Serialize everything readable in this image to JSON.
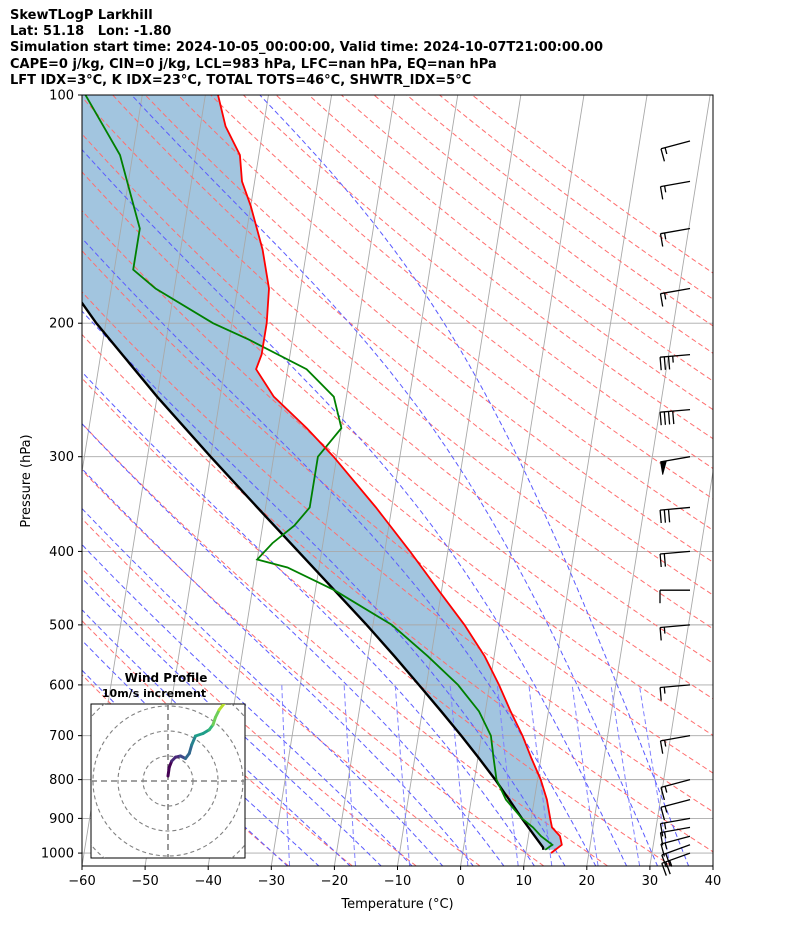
{
  "header": {
    "lines": [
      "SkewTLogP Larkhill",
      "Lat: 51.18   Lon: -1.80",
      "Simulation start time: 2024-10-05_00:00:00, Valid time: 2024-10-07T21:00:00.00",
      "CAPE=0 j/kg, CIN=0 j/kg, LCL=983 hPa, LFC=nan hPa, EQ=nan hPa",
      "LFT IDX=3°C, K IDX=23°C, TOTAL TOTS=46°C, SHWTR_IDX=5°C"
    ]
  },
  "colors": {
    "temperature": "#ff0000",
    "dewpoint": "#008000",
    "parcel": "#000000",
    "shade": "#a2c5df",
    "dry_adiabat": "#ff6f6f",
    "moist_adiabat": "#5a5aff",
    "mixing_ratio": "#8080ff",
    "isotherm": "#a9a9a9"
  },
  "chart_data": {
    "type": "skewt",
    "xlabel": "Temperature (°C)",
    "ylabel": "Pressure (hPa)",
    "xlim": [
      -60,
      40
    ],
    "ylim": [
      1040,
      100
    ],
    "y_scale": "log",
    "grid": true,
    "x_ticks": [
      -60,
      -50,
      -40,
      -30,
      -20,
      -10,
      0,
      10,
      20,
      30,
      40
    ],
    "x_tick_labels": [
      "−60",
      "−50",
      "−40",
      "−30",
      "−20",
      "−10",
      "0",
      "10",
      "20",
      "30",
      "40"
    ],
    "y_ticks": [
      1000,
      900,
      800,
      700,
      600,
      500,
      400,
      300,
      200,
      100
    ],
    "y_tick_labels": [
      "1000",
      "900",
      "800",
      "700",
      "600",
      "500",
      "400",
      "300",
      "200",
      "100"
    ],
    "temperature_profile": [
      {
        "p": 1000,
        "t": 14
      },
      {
        "p": 975,
        "t": 15.5
      },
      {
        "p": 950,
        "t": 15
      },
      {
        "p": 925,
        "t": 13.5
      },
      {
        "p": 900,
        "t": 13
      },
      {
        "p": 850,
        "t": 12
      },
      {
        "p": 800,
        "t": 10.5
      },
      {
        "p": 750,
        "t": 8.5
      },
      {
        "p": 700,
        "t": 6.5
      },
      {
        "p": 650,
        "t": 4
      },
      {
        "p": 600,
        "t": 1.5
      },
      {
        "p": 550,
        "t": -1.5
      },
      {
        "p": 500,
        "t": -5.5
      },
      {
        "p": 450,
        "t": -10.5
      },
      {
        "p": 400,
        "t": -16
      },
      {
        "p": 350,
        "t": -22.5
      },
      {
        "p": 300,
        "t": -30.5
      },
      {
        "p": 275,
        "t": -35.5
      },
      {
        "p": 250,
        "t": -41.5
      },
      {
        "p": 230,
        "t": -45
      },
      {
        "p": 220,
        "t": -44.5
      },
      {
        "p": 200,
        "t": -44.5
      },
      {
        "p": 180,
        "t": -45
      },
      {
        "p": 160,
        "t": -47
      },
      {
        "p": 140,
        "t": -50
      },
      {
        "p": 130,
        "t": -52
      },
      {
        "p": 120,
        "t": -53
      },
      {
        "p": 110,
        "t": -56
      },
      {
        "p": 100,
        "t": -58
      }
    ],
    "dewpoint_profile": [
      {
        "p": 990,
        "t": 13
      },
      {
        "p": 975,
        "t": 14
      },
      {
        "p": 950,
        "t": 12
      },
      {
        "p": 925,
        "t": 10.5
      },
      {
        "p": 900,
        "t": 8.5
      },
      {
        "p": 850,
        "t": 5.5
      },
      {
        "p": 800,
        "t": 3.5
      },
      {
        "p": 750,
        "t": 2.5
      },
      {
        "p": 700,
        "t": 1.5
      },
      {
        "p": 650,
        "t": -1
      },
      {
        "p": 600,
        "t": -5
      },
      {
        "p": 550,
        "t": -10.5
      },
      {
        "p": 500,
        "t": -17
      },
      {
        "p": 450,
        "t": -27
      },
      {
        "p": 420,
        "t": -35
      },
      {
        "p": 410,
        "t": -40
      },
      {
        "p": 390,
        "t": -38
      },
      {
        "p": 370,
        "t": -35
      },
      {
        "p": 350,
        "t": -33
      },
      {
        "p": 300,
        "t": -33
      },
      {
        "p": 275,
        "t": -30
      },
      {
        "p": 250,
        "t": -32
      },
      {
        "p": 230,
        "t": -37
      },
      {
        "p": 210,
        "t": -47
      },
      {
        "p": 200,
        "t": -53
      },
      {
        "p": 180,
        "t": -63
      },
      {
        "p": 170,
        "t": -67
      },
      {
        "p": 150,
        "t": -67
      },
      {
        "p": 120,
        "t": -72
      },
      {
        "p": 100,
        "t": -79
      }
    ],
    "parcel_profile": [
      {
        "p": 990,
        "t": 12.7
      },
      {
        "p": 983,
        "t": 12.6
      },
      {
        "p": 950,
        "t": 11
      },
      {
        "p": 900,
        "t": 8.5
      },
      {
        "p": 850,
        "t": 6
      },
      {
        "p": 800,
        "t": 3.3
      },
      {
        "p": 750,
        "t": 0.2
      },
      {
        "p": 700,
        "t": -3.2
      },
      {
        "p": 650,
        "t": -7
      },
      {
        "p": 600,
        "t": -11.2
      },
      {
        "p": 550,
        "t": -15.8
      },
      {
        "p": 500,
        "t": -21
      },
      {
        "p": 450,
        "t": -27
      },
      {
        "p": 400,
        "t": -33.7
      },
      {
        "p": 350,
        "t": -41.3
      },
      {
        "p": 300,
        "t": -50
      },
      {
        "p": 250,
        "t": -60
      },
      {
        "p": 200,
        "t": -71.5
      },
      {
        "p": 150,
        "t": -84.5
      },
      {
        "p": 100,
        "t": -101
      }
    ],
    "wind_barbs": [
      {
        "p": 1000,
        "speed_kt": 25,
        "dir_deg": 250
      },
      {
        "p": 975,
        "speed_kt": 20,
        "dir_deg": 250
      },
      {
        "p": 950,
        "speed_kt": 15,
        "dir_deg": 255
      },
      {
        "p": 925,
        "speed_kt": 15,
        "dir_deg": 260
      },
      {
        "p": 900,
        "speed_kt": 15,
        "dir_deg": 260
      },
      {
        "p": 850,
        "speed_kt": 15,
        "dir_deg": 255
      },
      {
        "p": 800,
        "speed_kt": 15,
        "dir_deg": 255
      },
      {
        "p": 700,
        "speed_kt": 15,
        "dir_deg": 260
      },
      {
        "p": 600,
        "speed_kt": 15,
        "dir_deg": 265
      },
      {
        "p": 500,
        "speed_kt": 15,
        "dir_deg": 265
      },
      {
        "p": 450,
        "speed_kt": 10,
        "dir_deg": 270
      },
      {
        "p": 400,
        "speed_kt": 20,
        "dir_deg": 265
      },
      {
        "p": 350,
        "speed_kt": 30,
        "dir_deg": 265
      },
      {
        "p": 300,
        "speed_kt": 50,
        "dir_deg": 260
      },
      {
        "p": 260,
        "speed_kt": 40,
        "dir_deg": 265
      },
      {
        "p": 220,
        "speed_kt": 35,
        "dir_deg": 265
      },
      {
        "p": 180,
        "speed_kt": 15,
        "dir_deg": 260
      },
      {
        "p": 150,
        "speed_kt": 15,
        "dir_deg": 260
      },
      {
        "p": 130,
        "speed_kt": 15,
        "dir_deg": 260
      },
      {
        "p": 115,
        "speed_kt": 15,
        "dir_deg": 255
      }
    ],
    "hodograph": {
      "title": "Wind Profile",
      "subtitle": "10m/s increment",
      "ring_step_ms": 10,
      "points": [
        {
          "u": 0.0,
          "v": 2.0
        },
        {
          "u": 0.5,
          "v": 5.5
        },
        {
          "u": 1.5,
          "v": 8.0
        },
        {
          "u": 3.0,
          "v": 9.5
        },
        {
          "u": 5.0,
          "v": 10.0
        },
        {
          "u": 7.0,
          "v": 9.0
        },
        {
          "u": 8.5,
          "v": 11.0
        },
        {
          "u": 9.5,
          "v": 14.5
        },
        {
          "u": 11.0,
          "v": 18.0
        },
        {
          "u": 14.0,
          "v": 19.0
        },
        {
          "u": 16.5,
          "v": 20.5
        },
        {
          "u": 18.0,
          "v": 22.5
        },
        {
          "u": 19.0,
          "v": 25.5
        },
        {
          "u": 20.5,
          "v": 28.5
        },
        {
          "u": 22.5,
          "v": 31.0
        }
      ]
    }
  }
}
